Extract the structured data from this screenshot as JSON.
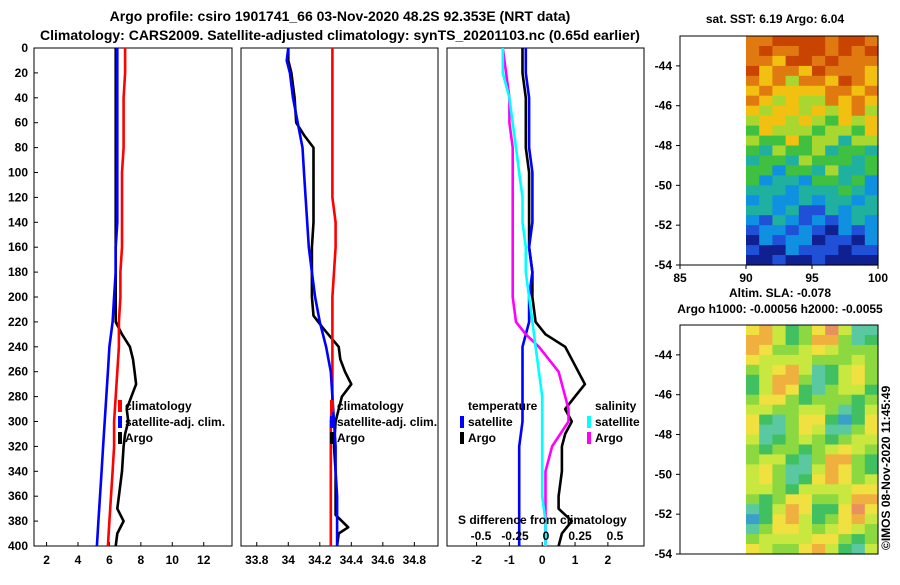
{
  "header": {
    "title_line1": "Argo profile: csiro 1901741_66 03-Nov-2020 48.2S 92.353E (NRT data)",
    "title_line2": "Climatology: CARS2009. Satellite-adjusted climatology: synTS_20201103.nc (0.65d earlier)"
  },
  "colors": {
    "argo": "#000000",
    "climatology": "#ff0000",
    "satellite": "#0000ff",
    "salinity": "#ff00ff",
    "sat_salinity": "#00ffff"
  },
  "depth_axis": {
    "ticks": [
      0,
      20,
      40,
      60,
      80,
      100,
      120,
      140,
      160,
      180,
      200,
      220,
      240,
      260,
      280,
      300,
      320,
      340,
      360,
      380,
      400
    ],
    "range": [
      0,
      400
    ]
  },
  "chart_data": [
    {
      "type": "line",
      "name": "temperature-panel",
      "xlim": [
        1.2,
        13.8
      ],
      "xticks": [
        2,
        4,
        6,
        8,
        10,
        12
      ],
      "ylabel": "depth",
      "legend": {
        "items": [
          "climatology",
          "satellite-adj. clim.",
          "Argo"
        ]
      },
      "series": [
        {
          "name": "Argo",
          "depth": [
            0,
            20,
            40,
            60,
            80,
            100,
            120,
            140,
            160,
            180,
            200,
            220,
            230,
            240,
            250,
            260,
            270,
            280,
            290,
            300,
            310,
            320,
            340,
            360,
            370,
            380,
            390,
            400
          ],
          "values": [
            6.4,
            6.4,
            6.4,
            6.4,
            6.4,
            6.4,
            6.4,
            6.4,
            6.4,
            6.4,
            6.4,
            6.4,
            6.8,
            7.3,
            7.5,
            7.6,
            7.7,
            7.4,
            7.1,
            7.2,
            7.0,
            6.9,
            6.8,
            6.6,
            6.5,
            6.9,
            6.5,
            6.4
          ]
        },
        {
          "name": "climatology",
          "depth": [
            0,
            20,
            40,
            60,
            80,
            100,
            120,
            140,
            160,
            180,
            200,
            220,
            240,
            260,
            280,
            300,
            320,
            340,
            360,
            380,
            400
          ],
          "values": [
            7.0,
            7.0,
            6.9,
            6.9,
            6.9,
            6.8,
            6.8,
            6.8,
            6.8,
            6.7,
            6.7,
            6.6,
            6.6,
            6.5,
            6.4,
            6.3,
            6.3,
            6.2,
            6.1,
            6.0,
            5.9
          ]
        },
        {
          "name": "satellite-adj. clim.",
          "depth": [
            0,
            20,
            40,
            60,
            80,
            100,
            120,
            140,
            160,
            180,
            200,
            220,
            240,
            260,
            280,
            300,
            320,
            340,
            360,
            380,
            400
          ],
          "values": [
            6.5,
            6.5,
            6.5,
            6.5,
            6.5,
            6.5,
            6.5,
            6.5,
            6.4,
            6.4,
            6.3,
            6.2,
            6.0,
            5.9,
            5.8,
            5.7,
            5.6,
            5.5,
            5.4,
            5.3,
            5.2
          ]
        }
      ]
    },
    {
      "type": "line",
      "name": "salinity-panel",
      "xlim": [
        33.7,
        34.95
      ],
      "xticks": [
        33.8,
        34,
        34.2,
        34.4,
        34.6,
        34.8
      ],
      "legend": {
        "items": [
          "climatology",
          "satellite-adj. clim.",
          "Argo"
        ]
      },
      "series": [
        {
          "name": "Argo",
          "depth": [
            0,
            10,
            20,
            40,
            60,
            70,
            80,
            100,
            120,
            140,
            160,
            180,
            200,
            215,
            225,
            240,
            250,
            260,
            270,
            280,
            290,
            300,
            320,
            340,
            360,
            375,
            385,
            390,
            400
          ],
          "values": [
            34.0,
            34.0,
            34.02,
            34.04,
            34.05,
            34.1,
            34.16,
            34.16,
            34.16,
            34.16,
            34.15,
            34.15,
            34.15,
            34.16,
            34.22,
            34.32,
            34.33,
            34.36,
            34.4,
            34.34,
            34.32,
            34.3,
            34.29,
            34.3,
            34.3,
            34.3,
            34.38,
            34.32,
            34.31
          ]
        },
        {
          "name": "climatology",
          "depth": [
            0,
            20,
            40,
            60,
            80,
            100,
            120,
            140,
            160,
            180,
            200,
            220,
            240,
            260,
            280,
            300,
            320,
            340,
            360,
            380,
            400
          ],
          "values": [
            34.28,
            34.28,
            34.28,
            34.28,
            34.28,
            34.28,
            34.28,
            34.3,
            34.3,
            34.29,
            34.28,
            34.28,
            34.28,
            34.28,
            34.28,
            34.27,
            34.27,
            34.27,
            34.27,
            34.27,
            34.27
          ]
        },
        {
          "name": "satellite-adj. clim.",
          "depth": [
            0,
            10,
            20,
            40,
            60,
            80,
            100,
            120,
            140,
            160,
            180,
            200,
            220,
            240,
            260,
            280,
            300,
            320,
            340,
            360,
            380,
            400
          ],
          "values": [
            34.0,
            33.99,
            34.01,
            34.03,
            34.06,
            34.09,
            34.1,
            34.11,
            34.12,
            34.13,
            34.15,
            34.17,
            34.2,
            34.24,
            34.27,
            34.28,
            34.29,
            34.3,
            34.3,
            34.31,
            34.31,
            34.31
          ]
        }
      ]
    },
    {
      "type": "line",
      "name": "difference-panel",
      "xlim": [
        -2.9,
        3.1
      ],
      "xticks": [
        -2,
        -1,
        0,
        1,
        2
      ],
      "annotation": "S difference from climatology",
      "s_ticks": [
        "-0.5",
        "-0.25",
        "0",
        "0.25",
        "0.5"
      ],
      "legend": {
        "temperature_title": "temperature",
        "salinity_title": "salinity",
        "satellite": "satellite",
        "argo": "Argo"
      },
      "series": [
        {
          "name": "temperature Argo",
          "depth": [
            0,
            20,
            40,
            60,
            80,
            100,
            120,
            140,
            160,
            180,
            200,
            220,
            230,
            240,
            250,
            260,
            270,
            280,
            290,
            300,
            310,
            320,
            340,
            360,
            370,
            380,
            390,
            400
          ],
          "values": [
            -0.6,
            -0.6,
            -0.5,
            -0.5,
            -0.5,
            -0.4,
            -0.4,
            -0.4,
            -0.4,
            -0.3,
            -0.3,
            -0.2,
            0.1,
            0.7,
            0.9,
            1.1,
            1.3,
            1.0,
            0.7,
            0.9,
            0.7,
            0.6,
            0.6,
            0.5,
            0.5,
            0.9,
            0.6,
            0.5
          ]
        },
        {
          "name": "temperature satellite",
          "depth": [
            0,
            20,
            40,
            60,
            80,
            100,
            120,
            140,
            160,
            180,
            200,
            220,
            240,
            260,
            280,
            300,
            320,
            340,
            360,
            380,
            400
          ],
          "values": [
            -0.5,
            -0.5,
            -0.4,
            -0.4,
            -0.4,
            -0.3,
            -0.3,
            -0.3,
            -0.4,
            -0.3,
            -0.4,
            -0.4,
            -0.6,
            -0.6,
            -0.6,
            -0.6,
            -0.7,
            -0.7,
            -0.7,
            -0.7,
            -0.7
          ]
        },
        {
          "name": "salinity Argo",
          "depth": [
            0,
            20,
            40,
            60,
            80,
            100,
            120,
            140,
            160,
            180,
            200,
            220,
            230,
            240,
            250,
            260,
            270,
            280,
            290,
            300,
            320,
            340,
            360,
            380,
            400
          ],
          "values": [
            -1.2,
            -1.1,
            -1.0,
            -1.0,
            -0.9,
            -0.9,
            -0.9,
            -0.9,
            -0.9,
            -0.9,
            -0.9,
            -0.8,
            -0.5,
            -0.1,
            0.2,
            0.5,
            0.6,
            0.7,
            0.8,
            0.8,
            0.3,
            0.1,
            0.1,
            0.1,
            0.1
          ]
        },
        {
          "name": "salinity satellite",
          "depth": [
            0,
            20,
            40,
            60,
            80,
            100,
            120,
            140,
            160,
            180,
            200,
            220,
            240,
            260,
            280,
            300,
            320,
            340,
            360,
            380,
            400
          ],
          "values": [
            -1.2,
            -1.2,
            -1.0,
            -0.9,
            -0.8,
            -0.7,
            -0.6,
            -0.6,
            -0.5,
            -0.5,
            -0.4,
            -0.3,
            -0.2,
            -0.1,
            0.0,
            0.0,
            0.0,
            0.0,
            0.0,
            0.1,
            0.1
          ]
        }
      ]
    },
    {
      "type": "heatmap",
      "name": "sst-map",
      "title": "sat. SST: 6.19 Argo: 6.04",
      "xticks": [
        85,
        90,
        95,
        100
      ],
      "yticks": [
        -44,
        -46,
        -48,
        -50,
        -52,
        -54
      ],
      "ylim": [
        -54,
        -42.5
      ],
      "xlim": [
        85,
        100
      ]
    },
    {
      "type": "heatmap",
      "name": "sla-map",
      "title_line1": "Altim. SLA: -0.078",
      "title_line2": "Argo h1000: -0.00056 h2000: -0.0055",
      "yticks": [
        -44,
        -46,
        -48,
        -50,
        -52,
        -54
      ],
      "ylim": [
        -54,
        -42.5
      ]
    }
  ],
  "footer": {
    "credit": "©IMOS 08-Nov-2020 11:45:49"
  }
}
